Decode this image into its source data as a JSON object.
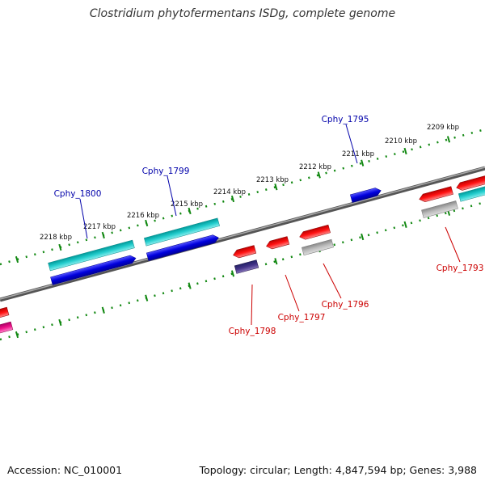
{
  "title": "Clostridium phytofermentans ISDg, complete genome",
  "footer": {
    "accession": "Accession: NC_010001",
    "summary": "Topology: circular; Length: 4,847,594 bp; Genes: 3,988"
  },
  "ticks": [
    {
      "label": "2218 kbp"
    },
    {
      "label": "2217 kbp"
    },
    {
      "label": "2216 kbp"
    },
    {
      "label": "2215 kbp"
    },
    {
      "label": "2214 kbp"
    },
    {
      "label": "2213 kbp"
    },
    {
      "label": "2212 kbp"
    },
    {
      "label": "2211 kbp"
    },
    {
      "label": "2210 kbp"
    },
    {
      "label": "2209 kbp"
    }
  ],
  "gene_labels": [
    {
      "id": "Cphy_1800",
      "text": "Cphy_1800",
      "color": "#0000aa"
    },
    {
      "id": "Cphy_1799",
      "text": "Cphy_1799",
      "color": "#0000aa"
    },
    {
      "id": "Cphy_1795",
      "text": "Cphy_1795",
      "color": "#0000aa"
    },
    {
      "id": "Cphy_1798",
      "text": "Cphy_1798",
      "color": "#cc0000"
    },
    {
      "id": "Cphy_1797",
      "text": "Cphy_1797",
      "color": "#cc0000"
    },
    {
      "id": "Cphy_1796",
      "text": "Cphy_1796",
      "color": "#cc0000"
    },
    {
      "id": "Cphy_1793",
      "text": "Cphy_1793",
      "color": "#cc0000"
    }
  ],
  "colors": {
    "backbone": "#888888",
    "tick_dots": "#118811",
    "forward_cds": "#0000dd",
    "forward_feature": "#22cccc",
    "reverse_cds": "#ee0000",
    "reverse_feature": "#bbbbbb",
    "pink_feature": "#ee1188",
    "dark_feature": "#443388"
  }
}
